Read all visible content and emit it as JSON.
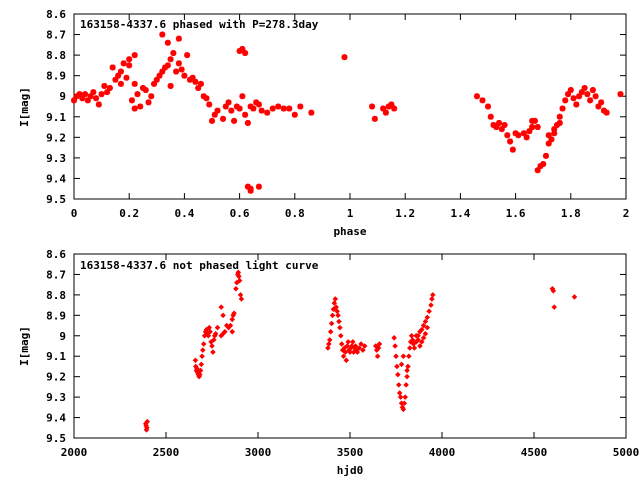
{
  "colors": {
    "points": "#ff0000",
    "frame": "#000000",
    "background": "#ffffff"
  },
  "chart_data": [
    {
      "type": "scatter",
      "title": "163158-4337.6 phased with P=278.3day",
      "xlabel": "phase",
      "ylabel": "I[mag]",
      "xlim": [
        0,
        2
      ],
      "ylim": [
        9.5,
        8.6
      ],
      "y_inverted": true,
      "grid": false,
      "marker": "star",
      "xticks": [
        "0",
        "0.2",
        "0.4",
        "0.6",
        "0.8",
        "1",
        "1.2",
        "1.4",
        "1.6",
        "1.8",
        "2"
      ],
      "yticks": [
        "8.6",
        "8.7",
        "8.8",
        "8.9",
        "9",
        "9.1",
        "9.2",
        "9.3",
        "9.4",
        "9.5"
      ],
      "points": [
        [
          0.0,
          9.02
        ],
        [
          0.01,
          9.0
        ],
        [
          0.02,
          8.99
        ],
        [
          0.03,
          9.01
        ],
        [
          0.04,
          8.99
        ],
        [
          0.05,
          9.02
        ],
        [
          0.06,
          9.0
        ],
        [
          0.07,
          8.98
        ],
        [
          0.08,
          9.01
        ],
        [
          0.09,
          9.04
        ],
        [
          0.1,
          8.99
        ],
        [
          0.11,
          8.95
        ],
        [
          0.12,
          8.98
        ],
        [
          0.13,
          8.96
        ],
        [
          0.14,
          8.86
        ],
        [
          0.15,
          8.92
        ],
        [
          0.16,
          8.9
        ],
        [
          0.17,
          8.94
        ],
        [
          0.17,
          8.88
        ],
        [
          0.18,
          8.84
        ],
        [
          0.19,
          8.91
        ],
        [
          0.2,
          8.82
        ],
        [
          0.21,
          9.02
        ],
        [
          0.22,
          9.06
        ],
        [
          0.22,
          8.94
        ],
        [
          0.23,
          8.99
        ],
        [
          0.24,
          9.05
        ],
        [
          0.25,
          8.96
        ],
        [
          0.26,
          8.97
        ],
        [
          0.27,
          9.03
        ],
        [
          0.28,
          9.0
        ],
        [
          0.29,
          8.94
        ],
        [
          0.3,
          8.92
        ],
        [
          0.31,
          8.9
        ],
        [
          0.32,
          8.88
        ],
        [
          0.33,
          8.86
        ],
        [
          0.34,
          8.85
        ],
        [
          0.35,
          8.82
        ],
        [
          0.35,
          8.95
        ],
        [
          0.36,
          8.79
        ],
        [
          0.37,
          8.88
        ],
        [
          0.38,
          8.84
        ],
        [
          0.39,
          8.87
        ],
        [
          0.4,
          8.9
        ],
        [
          0.41,
          8.8
        ],
        [
          0.42,
          8.92
        ],
        [
          0.43,
          8.91
        ],
        [
          0.44,
          8.93
        ],
        [
          0.45,
          8.96
        ],
        [
          0.46,
          8.94
        ],
        [
          0.47,
          9.0
        ],
        [
          0.48,
          9.01
        ],
        [
          0.49,
          9.04
        ],
        [
          0.5,
          9.12
        ],
        [
          0.51,
          9.09
        ],
        [
          0.52,
          9.07
        ],
        [
          0.54,
          9.11
        ],
        [
          0.55,
          9.05
        ],
        [
          0.56,
          9.03
        ],
        [
          0.57,
          9.07
        ],
        [
          0.58,
          9.12
        ],
        [
          0.59,
          9.05
        ],
        [
          0.6,
          9.06
        ],
        [
          0.61,
          9.0
        ],
        [
          0.62,
          9.09
        ],
        [
          0.63,
          9.13
        ],
        [
          0.64,
          9.05
        ],
        [
          0.65,
          9.06
        ],
        [
          0.66,
          9.03
        ],
        [
          0.67,
          9.04
        ],
        [
          0.68,
          9.07
        ],
        [
          0.7,
          9.08
        ],
        [
          0.72,
          9.06
        ],
        [
          0.74,
          9.05
        ],
        [
          0.76,
          9.06
        ],
        [
          0.78,
          9.06
        ],
        [
          0.8,
          9.09
        ],
        [
          0.82,
          9.05
        ],
        [
          0.86,
          9.08
        ],
        [
          0.63,
          9.44
        ],
        [
          0.64,
          9.45
        ],
        [
          0.64,
          9.46
        ],
        [
          0.67,
          9.44
        ],
        [
          0.6,
          8.78
        ],
        [
          0.61,
          8.77
        ],
        [
          0.62,
          8.79
        ],
        [
          0.22,
          8.8
        ],
        [
          0.2,
          8.85
        ],
        [
          0.32,
          8.7
        ],
        [
          0.34,
          8.74
        ],
        [
          0.38,
          8.72
        ],
        [
          0.98,
          8.81
        ],
        [
          1.08,
          9.05
        ],
        [
          1.09,
          9.11
        ],
        [
          1.12,
          9.06
        ],
        [
          1.13,
          9.08
        ],
        [
          1.14,
          9.05
        ],
        [
          1.15,
          9.04
        ],
        [
          1.16,
          9.06
        ],
        [
          1.46,
          9.0
        ],
        [
          1.48,
          9.02
        ],
        [
          1.5,
          9.05
        ],
        [
          1.51,
          9.1
        ],
        [
          1.52,
          9.14
        ],
        [
          1.53,
          9.15
        ],
        [
          1.54,
          9.13
        ],
        [
          1.55,
          9.16
        ],
        [
          1.56,
          9.14
        ],
        [
          1.57,
          9.19
        ],
        [
          1.58,
          9.22
        ],
        [
          1.59,
          9.26
        ],
        [
          1.6,
          9.18
        ],
        [
          1.61,
          9.19
        ],
        [
          1.63,
          9.18
        ],
        [
          1.64,
          9.2
        ],
        [
          1.65,
          9.17
        ],
        [
          1.66,
          9.15
        ],
        [
          1.67,
          9.12
        ],
        [
          1.68,
          9.36
        ],
        [
          1.69,
          9.34
        ],
        [
          1.7,
          9.33
        ],
        [
          1.71,
          9.29
        ],
        [
          1.72,
          9.23
        ],
        [
          1.73,
          9.21
        ],
        [
          1.74,
          9.18
        ],
        [
          1.75,
          9.14
        ],
        [
          1.76,
          9.1
        ],
        [
          1.77,
          9.06
        ],
        [
          1.78,
          9.02
        ],
        [
          1.79,
          8.99
        ],
        [
          1.8,
          8.97
        ],
        [
          1.81,
          9.01
        ],
        [
          1.82,
          9.04
        ],
        [
          1.83,
          9.0
        ],
        [
          1.84,
          8.98
        ],
        [
          1.85,
          8.96
        ],
        [
          1.86,
          8.99
        ],
        [
          1.87,
          9.02
        ],
        [
          1.88,
          8.97
        ],
        [
          1.89,
          9.0
        ],
        [
          1.9,
          9.05
        ],
        [
          1.91,
          9.03
        ],
        [
          1.92,
          9.07
        ],
        [
          1.93,
          9.08
        ],
        [
          1.72,
          9.19
        ],
        [
          1.74,
          9.16
        ],
        [
          1.76,
          9.13
        ],
        [
          1.68,
          9.15
        ],
        [
          1.66,
          9.12
        ],
        [
          1.98,
          8.99
        ]
      ]
    },
    {
      "type": "scatter",
      "title": "163158-4337.6 not phased light curve",
      "xlabel": "hjd0",
      "ylabel": "I[mag]",
      "xlim": [
        2000,
        5000
      ],
      "ylim": [
        9.5,
        8.6
      ],
      "y_inverted": true,
      "grid": false,
      "marker": "diamond",
      "xticks": [
        "2000",
        "2500",
        "3000",
        "3500",
        "4000",
        "4500",
        "5000"
      ],
      "yticks": [
        "8.6",
        "8.7",
        "8.8",
        "8.9",
        "9",
        "9.1",
        "9.2",
        "9.3",
        "9.4",
        "9.5"
      ],
      "points": [
        [
          2390,
          9.43
        ],
        [
          2392,
          9.44
        ],
        [
          2394,
          9.46
        ],
        [
          2396,
          9.45
        ],
        [
          2398,
          9.42
        ],
        [
          2660,
          9.12
        ],
        [
          2662,
          9.15
        ],
        [
          2665,
          9.17
        ],
        [
          2668,
          9.16
        ],
        [
          2672,
          9.18
        ],
        [
          2676,
          9.19
        ],
        [
          2680,
          9.2
        ],
        [
          2684,
          9.19
        ],
        [
          2688,
          9.17
        ],
        [
          2692,
          9.14
        ],
        [
          2696,
          9.1
        ],
        [
          2700,
          9.07
        ],
        [
          2705,
          9.04
        ],
        [
          2710,
          9.0
        ],
        [
          2715,
          8.98
        ],
        [
          2720,
          8.97
        ],
        [
          2725,
          8.99
        ],
        [
          2730,
          9.0
        ],
        [
          2735,
          8.96
        ],
        [
          2740,
          8.98
        ],
        [
          2745,
          9.03
        ],
        [
          2750,
          9.05
        ],
        [
          2755,
          9.08
        ],
        [
          2760,
          9.02
        ],
        [
          2765,
          9.0
        ],
        [
          2770,
          8.99
        ],
        [
          2780,
          8.96
        ],
        [
          2800,
          9.0
        ],
        [
          2810,
          8.99
        ],
        [
          2820,
          8.98
        ],
        [
          2830,
          8.95
        ],
        [
          2840,
          8.96
        ],
        [
          2850,
          8.95
        ],
        [
          2860,
          8.98
        ],
        [
          2870,
          8.89
        ],
        [
          2880,
          8.77
        ],
        [
          2885,
          8.74
        ],
        [
          2890,
          8.7
        ],
        [
          2893,
          8.69
        ],
        [
          2896,
          8.71
        ],
        [
          2900,
          8.73
        ],
        [
          2905,
          8.8
        ],
        [
          2910,
          8.82
        ],
        [
          2860,
          8.92
        ],
        [
          2865,
          8.9
        ],
        [
          2800,
          8.86
        ],
        [
          2810,
          8.9
        ],
        [
          3380,
          9.06
        ],
        [
          3385,
          9.04
        ],
        [
          3390,
          9.02
        ],
        [
          3395,
          8.98
        ],
        [
          3400,
          8.94
        ],
        [
          3405,
          8.9
        ],
        [
          3410,
          8.87
        ],
        [
          3415,
          8.84
        ],
        [
          3420,
          8.82
        ],
        [
          3425,
          8.86
        ],
        [
          3430,
          8.88
        ],
        [
          3435,
          8.9
        ],
        [
          3440,
          8.93
        ],
        [
          3445,
          8.96
        ],
        [
          3450,
          9.0
        ],
        [
          3455,
          9.04
        ],
        [
          3460,
          9.07
        ],
        [
          3465,
          9.1
        ],
        [
          3470,
          9.06
        ],
        [
          3475,
          9.08
        ],
        [
          3480,
          9.12
        ],
        [
          3485,
          9.05
        ],
        [
          3490,
          9.03
        ],
        [
          3495,
          9.07
        ],
        [
          3500,
          9.08
        ],
        [
          3505,
          9.06
        ],
        [
          3510,
          9.05
        ],
        [
          3515,
          9.03
        ],
        [
          3520,
          9.08
        ],
        [
          3525,
          9.06
        ],
        [
          3530,
          9.05
        ],
        [
          3535,
          9.07
        ],
        [
          3540,
          9.08
        ],
        [
          3550,
          9.06
        ],
        [
          3560,
          9.04
        ],
        [
          3570,
          9.07
        ],
        [
          3580,
          9.05
        ],
        [
          3640,
          9.05
        ],
        [
          3645,
          9.07
        ],
        [
          3650,
          9.1
        ],
        [
          3655,
          9.06
        ],
        [
          3660,
          9.04
        ],
        [
          3740,
          9.01
        ],
        [
          3745,
          9.05
        ],
        [
          3750,
          9.1
        ],
        [
          3755,
          9.15
        ],
        [
          3760,
          9.19
        ],
        [
          3765,
          9.24
        ],
        [
          3770,
          9.28
        ],
        [
          3775,
          9.3
        ],
        [
          3780,
          9.33
        ],
        [
          3785,
          9.35
        ],
        [
          3790,
          9.36
        ],
        [
          3795,
          9.33
        ],
        [
          3800,
          9.3
        ],
        [
          3805,
          9.24
        ],
        [
          3810,
          9.2
        ],
        [
          3815,
          9.15
        ],
        [
          3820,
          9.1
        ],
        [
          3825,
          9.06
        ],
        [
          3830,
          9.03
        ],
        [
          3835,
          9.0
        ],
        [
          3840,
          9.02
        ],
        [
          3845,
          9.04
        ],
        [
          3850,
          9.06
        ],
        [
          3860,
          9.03
        ],
        [
          3870,
          9.0
        ],
        [
          3880,
          8.98
        ],
        [
          3890,
          8.97
        ],
        [
          3900,
          8.95
        ],
        [
          3910,
          8.93
        ],
        [
          3920,
          8.91
        ],
        [
          3930,
          8.88
        ],
        [
          3940,
          8.85
        ],
        [
          3945,
          8.82
        ],
        [
          3950,
          8.8
        ],
        [
          3860,
          9.0
        ],
        [
          3870,
          9.02
        ],
        [
          3880,
          9.05
        ],
        [
          3890,
          9.03
        ],
        [
          3900,
          9.01
        ],
        [
          3910,
          8.99
        ],
        [
          3920,
          8.96
        ],
        [
          3810,
          9.17
        ],
        [
          3790,
          9.1
        ],
        [
          3780,
          9.14
        ],
        [
          4600,
          8.77
        ],
        [
          4605,
          8.78
        ],
        [
          4610,
          8.86
        ],
        [
          4720,
          8.81
        ]
      ]
    }
  ]
}
